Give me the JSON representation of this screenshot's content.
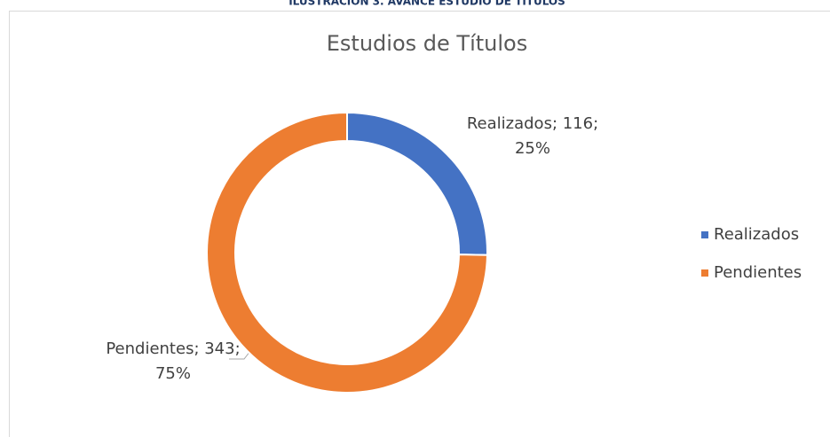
{
  "caption": "ILUSTRACIÓN 3. AVANCE ESTUDIO DE TÍTULOS",
  "chart_data": {
    "type": "donut",
    "title": "Estudios de Títulos",
    "categories": [
      "Realizados",
      "Pendientes"
    ],
    "values": [
      116,
      343
    ],
    "value_labels": [
      "Realizados; 116; 25%",
      "Pendientes; 343; 75%"
    ],
    "colors": [
      "#4472c4",
      "#ed7d31"
    ],
    "legend": "right"
  }
}
